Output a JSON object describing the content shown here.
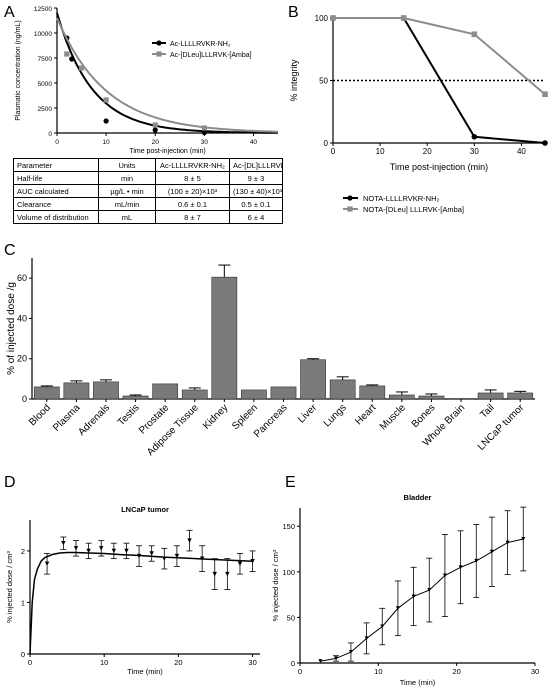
{
  "panel_letters": {
    "a": "A",
    "b": "B",
    "c": "C",
    "d": "D",
    "e": "E"
  },
  "table": {
    "rows": [
      [
        "Parameter",
        "Units",
        "Ac-LLLLRVKR-NH₂",
        "Ac-[DL]LLLRVK-Amba"
      ],
      [
        "Half-life",
        "min",
        "8 ± 5",
        "9 ± 3"
      ],
      [
        "AUC calculated",
        "µg/L • min",
        "(100 ± 20)×10³",
        "(130 ± 40)×10³"
      ],
      [
        "Clearance",
        "mL/min",
        "0.6 ± 0.1",
        "0.5 ± 0.1"
      ],
      [
        "Volume of distribution",
        "mL",
        "8 ± 7",
        "6 ± 4"
      ]
    ]
  },
  "chart_data": [
    {
      "panel": "A",
      "type": "scatter",
      "title": "",
      "xlabel": "Time post-injection (min)",
      "ylabel": "Plasmatic concentration (ng/mL)",
      "xlim": [
        0,
        45
      ],
      "ylim": [
        0,
        12500
      ],
      "xticks": [
        0,
        10,
        20,
        30,
        40
      ],
      "yticks": [
        0,
        2500,
        5000,
        7500,
        10000,
        12500
      ],
      "x_ticklabels": [
        "0",
        "10",
        "20",
        "30",
        "40"
      ],
      "y_ticklabels": [
        "0",
        "2500",
        "5000",
        "7500",
        "10000",
        "12500"
      ],
      "legend": "right",
      "series": [
        {
          "name": "Ac-LLLLRVKR-NH₂",
          "color": "#000000",
          "marker": "circle",
          "x": [
            2,
            3,
            10,
            20,
            30
          ],
          "y": [
            9500,
            7400,
            1200,
            300,
            50
          ],
          "fit": {
            "c0": 12000,
            "k": 0.14
          }
        },
        {
          "name": "Ac-[DLeu]LLLRVK-[Amba]",
          "color": "#8c8c8c",
          "marker": "square",
          "x": [
            2,
            5,
            10,
            20,
            30
          ],
          "y": [
            7900,
            6500,
            3300,
            800,
            500
          ],
          "fit": {
            "c0": 11500,
            "k": 0.1
          }
        }
      ]
    },
    {
      "panel": "B",
      "type": "line",
      "title": "",
      "xlabel": "Time post-injection (min)",
      "ylabel": "% integrity",
      "xlim": [
        0,
        45
      ],
      "ylim": [
        0,
        100
      ],
      "xticks": [
        0,
        10,
        20,
        30,
        40
      ],
      "yticks": [
        0,
        50,
        100
      ],
      "x_ticklabels": [
        "0",
        "10",
        "20",
        "30",
        "40"
      ],
      "y_ticklabels": [
        "0",
        "50",
        "100"
      ],
      "reference_line": 50,
      "legend": "bottom",
      "series": [
        {
          "name": "NOTA-LLLLRVKR-NH₂",
          "color": "#000000",
          "marker": "circle",
          "x": [
            0,
            15,
            30,
            45
          ],
          "y": [
            100,
            100,
            5,
            0
          ]
        },
        {
          "name": "NOTA-[DLeu] LLLRVK-[Amba]",
          "color": "#8c8c8c",
          "marker": "square",
          "x": [
            0,
            15,
            30,
            45
          ],
          "y": [
            100,
            100,
            87,
            39
          ]
        }
      ]
    },
    {
      "panel": "C",
      "type": "bar",
      "title": "",
      "xlabel": "",
      "ylabel": "% of injected dose /g",
      "ylim": [
        0,
        70
      ],
      "yticks": [
        0,
        20,
        40,
        60
      ],
      "y_ticklabels": [
        "0",
        "20",
        "40",
        "60"
      ],
      "categories": [
        "Blood",
        "Plasma",
        "Adrenals",
        "Testis",
        "Prostate",
        "Adipose Tissue",
        "Kidney",
        "Spleen",
        "Pancreas",
        "Liver",
        "Lungs",
        "Heart",
        "Muscle",
        "Bones",
        "Whole Brain",
        "Tail",
        "LNCaP tumor"
      ],
      "values": [
        6.0,
        8.0,
        8.5,
        1.5,
        7.5,
        4.5,
        60.5,
        4.5,
        6.0,
        19.5,
        9.5,
        6.5,
        2.0,
        1.5,
        0.2,
        3.0,
        3.0
      ],
      "errors": [
        0.5,
        1.0,
        1.0,
        0.5,
        0.0,
        1.0,
        6.0,
        0.0,
        0.0,
        0.5,
        1.5,
        0.5,
        1.5,
        1.0,
        0.0,
        1.5,
        0.8
      ]
    },
    {
      "panel": "D",
      "type": "scatter",
      "title": "LNCaP tumor",
      "xlabel": "Time (min)",
      "ylabel": "% injected dose / cm³",
      "xlim": [
        0,
        31
      ],
      "ylim": [
        0,
        2.6
      ],
      "xticks": [
        0,
        10,
        20,
        30
      ],
      "yticks": [
        0,
        1,
        2
      ],
      "x_ticklabels": [
        "0",
        "10",
        "20",
        "30"
      ],
      "y_ticklabels": [
        "0",
        "1",
        "2"
      ],
      "x": [
        2.3,
        4.5,
        6.2,
        7.9,
        9.6,
        11.3,
        13.0,
        14.7,
        16.4,
        18.1,
        19.8,
        21.5,
        23.2,
        24.9,
        26.6,
        28.3,
        30.0
      ],
      "y": [
        1.75,
        2.15,
        2.05,
        2.0,
        2.05,
        2.0,
        2.0,
        1.9,
        1.95,
        1.85,
        1.9,
        2.2,
        1.85,
        1.55,
        1.55,
        1.75,
        1.8
      ],
      "errors": [
        0.2,
        0.12,
        0.15,
        0.15,
        0.15,
        0.15,
        0.15,
        0.2,
        0.15,
        0.2,
        0.2,
        0.2,
        0.25,
        0.3,
        0.3,
        0.2,
        0.2
      ],
      "fit": {
        "x": [
          0,
          0.3,
          0.6,
          1,
          1.5,
          2,
          3,
          4,
          5,
          6,
          8,
          10,
          12,
          15,
          18,
          21,
          24,
          27,
          30
        ],
        "y": [
          0.0,
          1.0,
          1.45,
          1.65,
          1.8,
          1.87,
          1.93,
          1.96,
          1.97,
          1.97,
          1.96,
          1.95,
          1.93,
          1.91,
          1.88,
          1.86,
          1.84,
          1.82,
          1.8
        ]
      }
    },
    {
      "panel": "E",
      "type": "line",
      "title": "Bladder",
      "xlabel": "Time (min)",
      "ylabel": "% injected dose / cm³",
      "xlim": [
        0,
        30
      ],
      "ylim": [
        0,
        170
      ],
      "xticks": [
        0,
        10,
        20,
        30
      ],
      "yticks": [
        0,
        50,
        100,
        150
      ],
      "x_ticklabels": [
        "0",
        "10",
        "20",
        "30"
      ],
      "y_ticklabels": [
        "0",
        "50",
        "100",
        "150"
      ],
      "x": [
        2.6,
        4.6,
        6.5,
        8.5,
        10.5,
        12.5,
        14.5,
        16.5,
        18.5,
        20.5,
        22.5,
        24.5,
        26.5,
        28.5
      ],
      "y": [
        2,
        5,
        12,
        27,
        40,
        60,
        73,
        80,
        96,
        105,
        112,
        122,
        132,
        136
      ],
      "errors": [
        0,
        3,
        10,
        17,
        20,
        30,
        32,
        35,
        45,
        40,
        40,
        38,
        35,
        35
      ]
    }
  ]
}
